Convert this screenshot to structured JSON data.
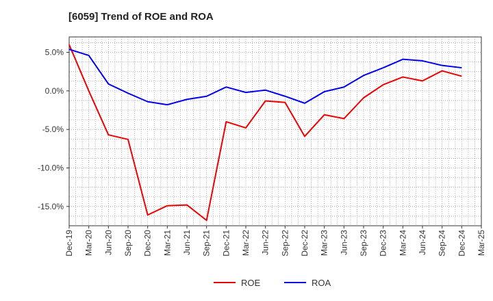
{
  "chart_data": {
    "type": "line",
    "title": "[6059]  Trend of ROE and ROA",
    "categories": [
      "Dec-19",
      "Mar-20",
      "Jun-20",
      "Sep-20",
      "Dec-20",
      "Mar-21",
      "Jun-21",
      "Sep-21",
      "Dec-21",
      "Mar-22",
      "Jun-22",
      "Sep-22",
      "Dec-22",
      "Mar-23",
      "Jun-23",
      "Sep-23",
      "Dec-23",
      "Mar-24",
      "Jun-24",
      "Sep-24",
      "Dec-24",
      "Mar-25"
    ],
    "y_ticks": [
      "5.0%",
      "0.0%",
      "-5.0%",
      "-10.0%",
      "-15.0%"
    ],
    "y_tick_values": [
      5,
      0,
      -5,
      -10,
      -15
    ],
    "ylim": [
      -17.5,
      7.0
    ],
    "grid": true,
    "legend_position": "bottom-center",
    "series": [
      {
        "name": "ROE",
        "color": "#ee0000",
        "values": [
          6.0,
          0.0,
          -5.7,
          -6.3,
          -16.1,
          -14.9,
          -14.8,
          -16.8,
          -4.0,
          -4.8,
          -1.3,
          -1.5,
          -5.9,
          -3.1,
          -3.6,
          -0.9,
          0.8,
          1.8,
          1.3,
          2.6,
          1.9,
          null
        ]
      },
      {
        "name": "ROA",
        "color": "#0000ee",
        "values": [
          5.4,
          4.6,
          0.9,
          -0.3,
          -1.4,
          -1.8,
          -1.1,
          -0.7,
          0.5,
          -0.2,
          0.1,
          -0.7,
          -1.6,
          -0.1,
          0.5,
          2.0,
          3.0,
          4.1,
          3.9,
          3.3,
          3.0,
          null
        ]
      }
    ]
  }
}
